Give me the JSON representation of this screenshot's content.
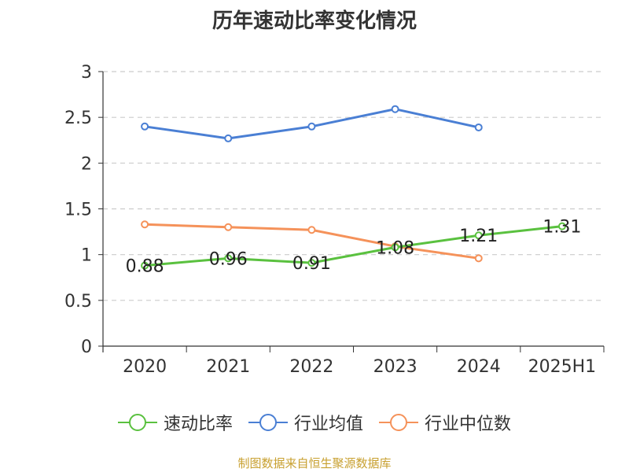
{
  "chart_data": {
    "type": "line",
    "title": "历年速动比率变化情况",
    "categories": [
      "2020",
      "2021",
      "2022",
      "2023",
      "2024",
      "2025H1"
    ],
    "yticks": [
      "0",
      "0.5",
      "1",
      "1.5",
      "2",
      "2.5",
      "3"
    ],
    "ylim": [
      0,
      3
    ],
    "grid": true,
    "legend_position": "bottom",
    "series": [
      {
        "name": "速动比率",
        "color": "#5ac13f",
        "values": [
          0.88,
          0.96,
          0.91,
          1.08,
          1.21,
          1.31
        ],
        "labels": [
          "0.88",
          "0.96",
          "0.91",
          "1.08",
          "1.21",
          "1.31"
        ]
      },
      {
        "name": "行业均值",
        "color": "#4a7fd4",
        "values": [
          2.4,
          2.27,
          2.4,
          2.59,
          2.39,
          null
        ]
      },
      {
        "name": "行业中位数",
        "color": "#f5925a",
        "values": [
          1.33,
          1.3,
          1.27,
          1.09,
          0.96,
          null
        ]
      }
    ]
  },
  "source_note": "制图数据来自恒生聚源数据库"
}
